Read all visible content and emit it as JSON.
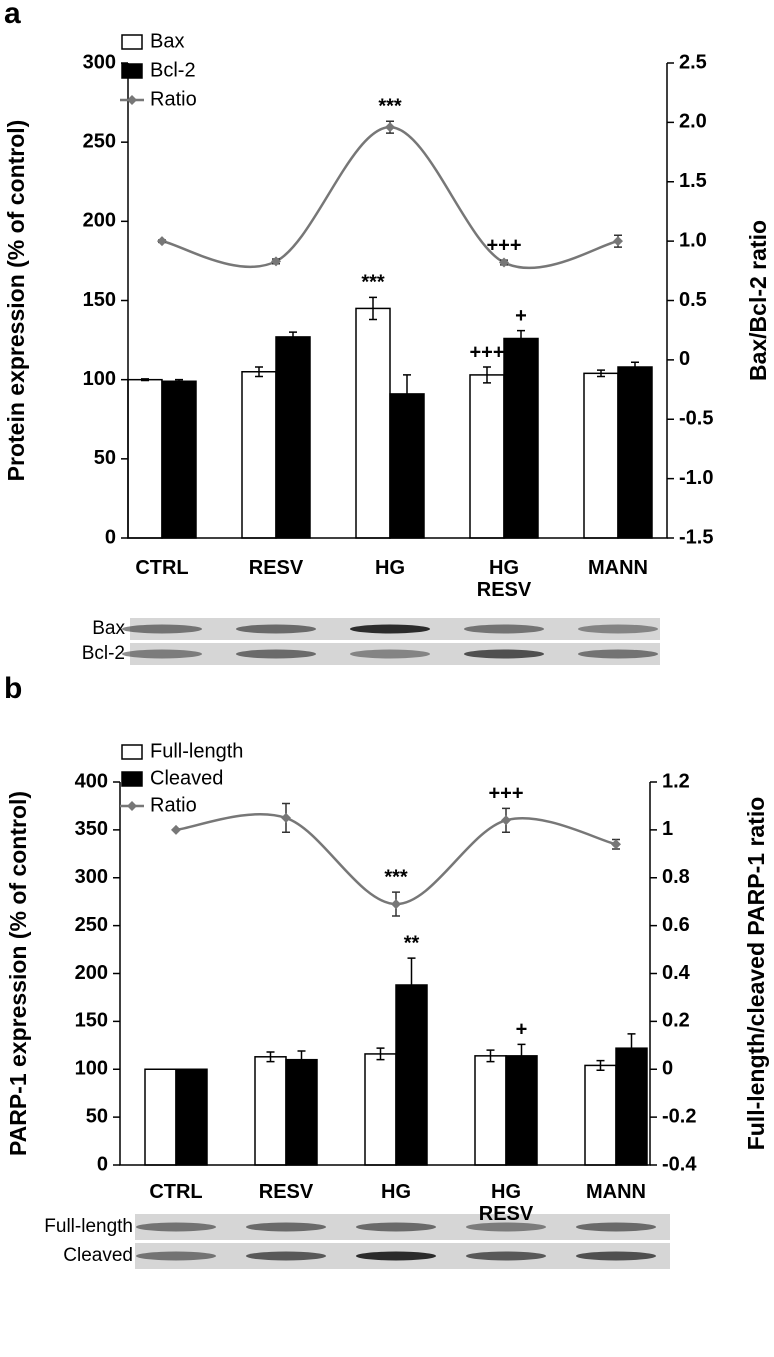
{
  "chart_data": [
    {
      "type": "bar",
      "panel": "a",
      "categories": [
        "CTRL",
        "RESV",
        "HG",
        "HG RESV",
        "MANN"
      ],
      "series": [
        {
          "name": "Bax",
          "color": "#ffffff",
          "values": [
            100,
            105,
            145,
            103,
            104
          ],
          "errors": [
            0.5,
            3,
            7,
            5,
            2
          ]
        },
        {
          "name": "Bcl-2",
          "color": "#000000",
          "values": [
            99,
            127,
            91,
            126,
            108
          ],
          "errors": [
            1,
            3,
            12,
            5,
            3
          ]
        },
        {
          "name": "Ratio",
          "type": "line",
          "axis": "y2",
          "color": "#777777",
          "values": [
            1.0,
            0.83,
            1.96,
            0.82,
            1.0
          ],
          "errors": [
            0.01,
            0.02,
            0.05,
            0.02,
            0.05
          ]
        }
      ],
      "ylabel": "Protein expression (% of control)",
      "y2label": "Bax/Bcl-2 ratio",
      "ylim": [
        0,
        300
      ],
      "yticks": [
        0,
        50,
        100,
        150,
        200,
        250,
        300
      ],
      "y2lim": [
        -1.5,
        2.5
      ],
      "y2ticks": [
        -1.5,
        {
          "value": -1,
          "label": "-1.0"
        },
        -0.5,
        0,
        0.5,
        {
          "value": 1,
          "label": "1.0"
        },
        1.5,
        {
          "value": 2,
          "label": "2.0"
        },
        2.5
      ],
      "legend": "upper left",
      "annotations": [
        {
          "text": "***",
          "category": "HG",
          "series": "Bax"
        },
        {
          "text": "***",
          "category": "HG",
          "series": "Ratio"
        },
        {
          "text": "+++",
          "category": "HG RESV",
          "series": "Bax"
        },
        {
          "text": "+",
          "category": "HG RESV",
          "series": "Bcl-2"
        },
        {
          "text": "+++",
          "category": "HG RESV",
          "series": "Ratio"
        }
      ],
      "blot_labels": [
        "Bax",
        "Bcl-2"
      ]
    },
    {
      "type": "bar",
      "panel": "b",
      "categories": [
        "CTRL",
        "RESV",
        "HG",
        "HG RESV",
        "MANN"
      ],
      "series": [
        {
          "name": "Full-length",
          "color": "#ffffff",
          "values": [
            100,
            113,
            116,
            114,
            104
          ],
          "errors": [
            0,
            5,
            6,
            6,
            5
          ]
        },
        {
          "name": "Cleaved",
          "color": "#000000",
          "values": [
            100,
            110,
            188,
            114,
            122
          ],
          "errors": [
            0,
            9,
            28,
            12,
            15
          ]
        },
        {
          "name": "Ratio",
          "type": "line",
          "axis": "y2",
          "color": "#777777",
          "values": [
            1.0,
            1.05,
            0.69,
            1.04,
            0.94
          ],
          "errors": [
            0,
            0.06,
            0.05,
            0.05,
            0.02
          ]
        }
      ],
      "ylabel": "PARP-1 expression (% of control)",
      "y2label": "Full-length/cleaved PARP-1 ratio",
      "ylim": [
        0,
        400
      ],
      "yticks": [
        0,
        50,
        100,
        150,
        200,
        250,
        300,
        350,
        400
      ],
      "y2lim": [
        -0.4,
        1.2
      ],
      "y2ticks": [
        -0.4,
        -0.2,
        0,
        0.2,
        0.4,
        0.6,
        0.8,
        1,
        1.2
      ],
      "legend": "upper left",
      "annotations": [
        {
          "text": "***",
          "category": "HG",
          "series": "Ratio"
        },
        {
          "text": "**",
          "category": "HG",
          "series": "Cleaved"
        },
        {
          "text": "+++",
          "category": "HG RESV",
          "series": "Ratio"
        },
        {
          "text": "+",
          "category": "HG RESV",
          "series": "Cleaved"
        }
      ],
      "blot_labels": [
        "Full-length",
        "Cleaved"
      ]
    }
  ]
}
